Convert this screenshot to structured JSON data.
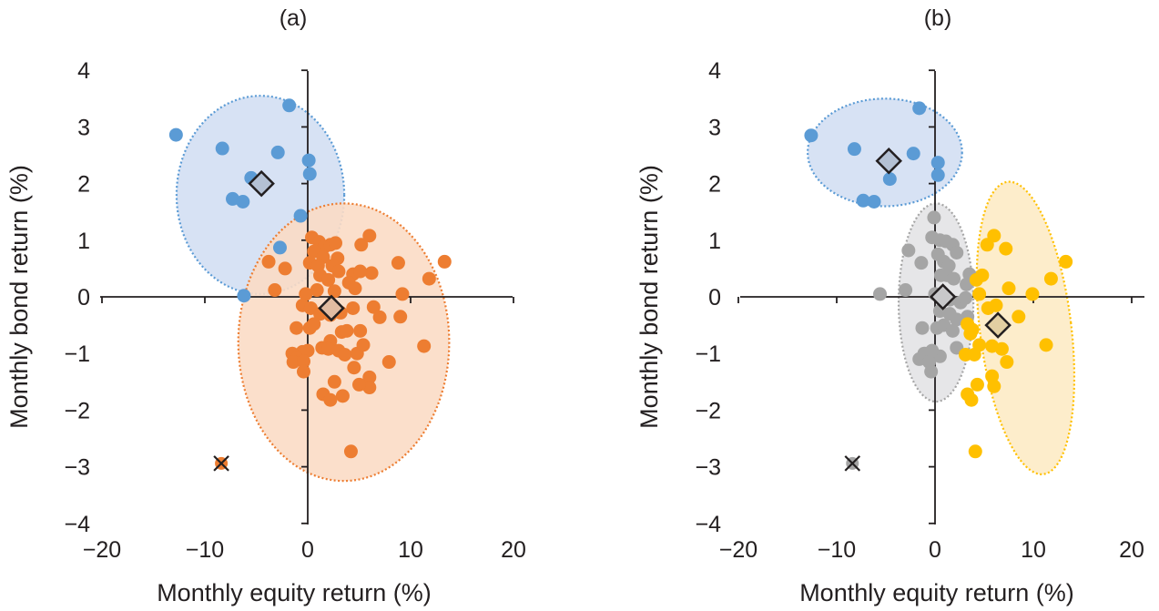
{
  "chart_data": [
    {
      "type": "scatter",
      "title": "(a)",
      "xlabel": "Monthly equity return (%)",
      "ylabel": "Monthly bond return (%)",
      "xlim": [
        -20,
        20
      ],
      "ylim": [
        -4,
        4
      ],
      "xticks": [
        "−20",
        "−10",
        "0",
        "10",
        "20"
      ],
      "yticks": [
        "4",
        "3",
        "2",
        "1",
        "0",
        "−1",
        "−2",
        "−3",
        "−4"
      ],
      "xtick_values": [
        -20,
        -10,
        0,
        10,
        20
      ],
      "ytick_values": [
        4,
        3,
        2,
        1,
        0,
        -1,
        -2,
        -3,
        -4
      ],
      "grid": false,
      "clusters": [
        {
          "name": "cluster-blue",
          "color": "#5b9bd5",
          "fill": "#d3dff3",
          "centroid": [
            -4.5,
            2.0
          ],
          "ellipse": {
            "center": [
              -4.6,
              1.8
            ],
            "rx_units": 16.3,
            "ry_units": 1.75,
            "rotation_deg": 0
          },
          "points": [
            [
              -1.8,
              3.38
            ],
            [
              -12.8,
              2.86
            ],
            [
              -8.3,
              2.62
            ],
            [
              -2.9,
              2.55
            ],
            [
              0.1,
              2.41
            ],
            [
              0.2,
              2.17
            ],
            [
              -5.5,
              2.1
            ],
            [
              -7.3,
              1.73
            ],
            [
              -6.3,
              1.68
            ],
            [
              -0.7,
              1.43
            ],
            [
              -2.7,
              0.87
            ],
            [
              -6.2,
              0.02
            ]
          ]
        },
        {
          "name": "cluster-orange",
          "color": "#ed7d31",
          "fill": "#fbdcc5",
          "centroid": [
            2.3,
            -0.2
          ],
          "ellipse": {
            "center": [
              3.5,
              -0.8
            ],
            "rx_units": 20.5,
            "ry_units": 2.45,
            "rotation_deg": 0
          },
          "points": [
            [
              0.4,
              1.05
            ],
            [
              1.1,
              0.97
            ],
            [
              1.6,
              0.88
            ],
            [
              2.2,
              0.92
            ],
            [
              2.7,
              0.95
            ],
            [
              0.6,
              0.8
            ],
            [
              1.5,
              0.7
            ],
            [
              2.9,
              0.68
            ],
            [
              0.2,
              0.6
            ],
            [
              1.0,
              0.55
            ],
            [
              2.4,
              0.55
            ],
            [
              3.0,
              0.45
            ],
            [
              1.2,
              0.38
            ],
            [
              2.0,
              0.3
            ],
            [
              -3.8,
              0.62
            ],
            [
              -2.2,
              0.5
            ],
            [
              0.9,
              0.12
            ],
            [
              2.6,
              0.1
            ],
            [
              5.2,
              0.92
            ],
            [
              6.0,
              1.08
            ],
            [
              8.8,
              0.6
            ],
            [
              13.3,
              0.62
            ],
            [
              11.8,
              0.32
            ],
            [
              9.2,
              0.05
            ],
            [
              6.2,
              0.42
            ],
            [
              4.4,
              0.4
            ],
            [
              5.1,
              0.45
            ],
            [
              4.0,
              0.25
            ],
            [
              4.6,
              0.15
            ],
            [
              -0.2,
              0.05
            ],
            [
              -3.2,
              0.12
            ],
            [
              -0.5,
              -0.15
            ],
            [
              0.3,
              -0.2
            ],
            [
              1.2,
              -0.3
            ],
            [
              2.2,
              -0.32
            ],
            [
              3.2,
              -0.28
            ],
            [
              4.4,
              -0.2
            ],
            [
              6.4,
              -0.18
            ],
            [
              7.0,
              -0.36
            ],
            [
              -1.1,
              -0.55
            ],
            [
              0.2,
              -0.55
            ],
            [
              0.6,
              -0.48
            ],
            [
              2.2,
              -0.78
            ],
            [
              3.3,
              -0.62
            ],
            [
              5.1,
              -0.6
            ],
            [
              9.0,
              -0.35
            ],
            [
              -0.5,
              -0.97
            ],
            [
              1.4,
              -0.9
            ],
            [
              2.0,
              -0.92
            ],
            [
              3.8,
              -0.6
            ],
            [
              4.8,
              -1.0
            ],
            [
              -1.5,
              -1.0
            ],
            [
              -1.0,
              -1.08
            ],
            [
              0.0,
              -0.95
            ],
            [
              -1.4,
              -1.15
            ],
            [
              -0.4,
              -1.14
            ],
            [
              5.4,
              -0.85
            ],
            [
              7.9,
              -1.15
            ],
            [
              11.3,
              -0.87
            ],
            [
              2.6,
              -1.5
            ],
            [
              3.4,
              -1.75
            ],
            [
              4.5,
              -1.25
            ],
            [
              6.0,
              -1.42
            ],
            [
              6.0,
              -1.6
            ],
            [
              -0.4,
              -1.32
            ],
            [
              1.5,
              -1.72
            ],
            [
              2.2,
              -1.82
            ],
            [
              5.0,
              -1.55
            ],
            [
              3.0,
              -0.95
            ],
            [
              3.6,
              -1.02
            ],
            [
              4.2,
              -2.73
            ]
          ]
        }
      ],
      "markers": [
        {
          "type": "x",
          "x": -8.4,
          "y": -2.94,
          "underlying_color": "#ed7d31"
        }
      ]
    },
    {
      "type": "scatter",
      "title": "(b)",
      "xlabel": "Monthly equity return (%)",
      "ylabel": "Monthly bond return (%)",
      "xlim": [
        -20,
        20
      ],
      "ylim": [
        -4,
        4
      ],
      "xticks": [
        "−20",
        "−10",
        "0",
        "10",
        "20"
      ],
      "yticks": [
        "4",
        "3",
        "2",
        "1",
        "0",
        "−1",
        "−2",
        "−3",
        "−4"
      ],
      "xtick_values": [
        -20,
        -10,
        0,
        10,
        20
      ],
      "ytick_values": [
        4,
        3,
        2,
        1,
        0,
        -1,
        -2,
        -3,
        -4
      ],
      "grid": false,
      "clusters": [
        {
          "name": "cluster-blue",
          "color": "#5b9bd5",
          "fill": "#d3dff3",
          "centroid": [
            -4.7,
            2.4
          ],
          "ellipse": {
            "center": [
              -5.1,
              2.55
            ],
            "rx_units": 15.7,
            "ry_units": 0.95,
            "rotation_deg": 0
          },
          "points": [
            [
              -1.6,
              3.33
            ],
            [
              -12.6,
              2.85
            ],
            [
              -8.2,
              2.61
            ],
            [
              -2.2,
              2.53
            ],
            [
              0.3,
              2.37
            ],
            [
              0.3,
              2.15
            ],
            [
              -4.6,
              2.08
            ],
            [
              -7.3,
              1.7
            ],
            [
              -6.2,
              1.68
            ]
          ]
        },
        {
          "name": "cluster-gray",
          "color": "#a5a5a5",
          "fill": "#e3e3e5",
          "centroid": [
            0.8,
            0.0
          ],
          "ellipse": {
            "center": [
              0.1,
              -0.1
            ],
            "rx_units": 7.6,
            "ry_units": 1.75,
            "rotation_deg": 0
          },
          "points": [
            [
              -0.1,
              1.4
            ],
            [
              -0.3,
              1.05
            ],
            [
              0.5,
              1.0
            ],
            [
              1.1,
              0.98
            ],
            [
              1.8,
              0.92
            ],
            [
              2.2,
              0.78
            ],
            [
              -2.7,
              0.82
            ],
            [
              0.3,
              0.75
            ],
            [
              0.9,
              0.62
            ],
            [
              1.4,
              0.55
            ],
            [
              -1.4,
              0.6
            ],
            [
              0.6,
              0.38
            ],
            [
              1.2,
              0.38
            ],
            [
              1.9,
              0.32
            ],
            [
              3.5,
              0.4
            ],
            [
              3.2,
              0.22
            ],
            [
              -5.6,
              0.05
            ],
            [
              -3.0,
              0.12
            ],
            [
              0.0,
              0.05
            ],
            [
              1.5,
              -0.05
            ],
            [
              2.6,
              -0.1
            ],
            [
              3.1,
              -0.02
            ],
            [
              0.5,
              -0.25
            ],
            [
              1.5,
              -0.3
            ],
            [
              2.2,
              -0.4
            ],
            [
              3.3,
              -0.35
            ],
            [
              -1.3,
              -0.55
            ],
            [
              0.2,
              -0.55
            ],
            [
              0.9,
              -0.5
            ],
            [
              1.8,
              -0.6
            ],
            [
              -1.1,
              -1.0
            ],
            [
              -0.2,
              -1.0
            ],
            [
              0.5,
              -1.05
            ],
            [
              -1.6,
              -1.1
            ],
            [
              -0.6,
              -1.15
            ],
            [
              -0.3,
              -0.95
            ],
            [
              2.2,
              -0.9
            ],
            [
              -0.4,
              -1.32
            ]
          ]
        },
        {
          "name": "cluster-yellow",
          "color": "#ffc000",
          "fill": "#fdebc5",
          "centroid": [
            6.4,
            -0.5
          ],
          "ellipse": {
            "center": [
              9.2,
              -0.55
            ],
            "rx_units": 9.3,
            "ry_units": 2.6,
            "rotation_deg": -7
          },
          "points": [
            [
              5.3,
              0.92
            ],
            [
              6.0,
              1.08
            ],
            [
              7.2,
              0.85
            ],
            [
              13.3,
              0.62
            ],
            [
              11.8,
              0.32
            ],
            [
              9.9,
              0.05
            ],
            [
              4.8,
              0.38
            ],
            [
              4.2,
              0.3
            ],
            [
              7.5,
              0.15
            ],
            [
              4.5,
              0.05
            ],
            [
              5.4,
              -0.2
            ],
            [
              8.5,
              -0.35
            ],
            [
              6.2,
              -0.15
            ],
            [
              3.3,
              -0.48
            ],
            [
              3.8,
              -0.58
            ],
            [
              4.5,
              -0.85
            ],
            [
              5.8,
              -0.87
            ],
            [
              6.8,
              -0.92
            ],
            [
              7.3,
              -1.15
            ],
            [
              11.3,
              -0.85
            ],
            [
              4.0,
              -1.02
            ],
            [
              3.1,
              -1.02
            ],
            [
              3.6,
              -0.65
            ],
            [
              5.8,
              -1.4
            ],
            [
              6.0,
              -1.58
            ],
            [
              4.3,
              -1.55
            ],
            [
              3.3,
              -1.72
            ],
            [
              3.7,
              -1.82
            ],
            [
              4.1,
              -2.73
            ]
          ]
        }
      ],
      "markers": [
        {
          "type": "x",
          "x": -8.4,
          "y": -2.94,
          "underlying_color": "#a5a5a5"
        }
      ]
    }
  ]
}
